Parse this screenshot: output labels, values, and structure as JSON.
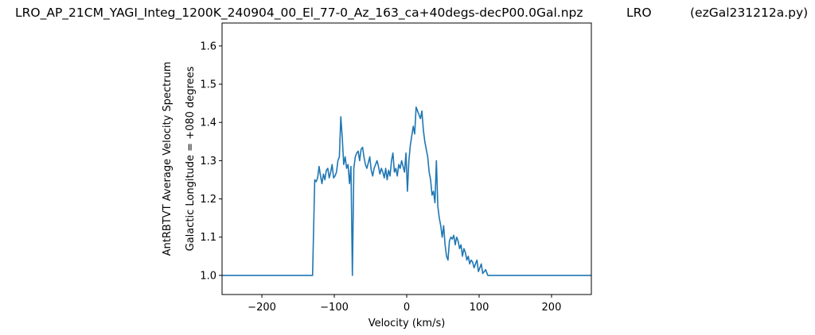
{
  "title_left": "LRO_AP_21CM_YAGI_Integ_1200K_240904_00_El_77-0_Az_163_ca+40degs-decP00.0Gal.npz",
  "title_mid": "LRO",
  "title_right": "(ezGal231212a.py)",
  "chart_data": {
    "type": "line",
    "title": "LRO_AP_21CM_YAGI_Integ_1200K_240904_00_El_77-0_Az_163_ca+40degs-decP00.0Gal.npz",
    "xlabel": "Velocity (km/s)",
    "ylabel": "AntRBTVT Average Velocity Spectrum",
    "ylabel2": "Galactic Longitude = +080 degrees",
    "xlim": [
      -255,
      255
    ],
    "ylim": [
      0.95,
      1.66
    ],
    "xticks": [
      -200,
      -100,
      0,
      100,
      200
    ],
    "xtick_labels": [
      "−200",
      "−100",
      "0",
      "100",
      "200"
    ],
    "yticks": [
      1.0,
      1.1,
      1.2,
      1.3,
      1.4,
      1.5,
      1.6
    ],
    "ytick_labels": [
      "1.0",
      "1.1",
      "1.2",
      "1.3",
      "1.4",
      "1.5",
      "1.6"
    ],
    "line_color": "#1f77b4",
    "grid": false,
    "series": [
      {
        "x": [
          -255,
          -130,
          -127,
          -125,
          -123,
          -121,
          -119,
          -117,
          -115,
          -113,
          -111,
          -109,
          -107,
          -105,
          -103,
          -101,
          -99,
          -97,
          -95,
          -93,
          -91,
          -89,
          -87,
          -85,
          -83,
          -81,
          -79,
          -77,
          -75,
          -73,
          -71,
          -69,
          -67,
          -65,
          -63,
          -61,
          -59,
          -57,
          -55,
          -53,
          -51,
          -49,
          -47,
          -45,
          -43,
          -41,
          -39,
          -37,
          -35,
          -33,
          -31,
          -29,
          -27,
          -25,
          -23,
          -21,
          -19,
          -17,
          -15,
          -13,
          -11,
          -9,
          -7,
          -5,
          -3,
          -1,
          1,
          3,
          5,
          7,
          9,
          11,
          13,
          15,
          17,
          19,
          21,
          23,
          25,
          27,
          29,
          31,
          33,
          35,
          37,
          39,
          41,
          43,
          45,
          47,
          49,
          51,
          53,
          55,
          57,
          59,
          61,
          63,
          65,
          67,
          69,
          71,
          73,
          75,
          77,
          79,
          81,
          83,
          85,
          87,
          89,
          91,
          93,
          95,
          97,
          99,
          101,
          103,
          105,
          107,
          109,
          112,
          255
        ],
        "values": [
          1.0,
          1.0,
          1.25,
          1.245,
          1.255,
          1.285,
          1.26,
          1.24,
          1.265,
          1.25,
          1.275,
          1.28,
          1.255,
          1.27,
          1.29,
          1.255,
          1.26,
          1.27,
          1.3,
          1.31,
          1.415,
          1.36,
          1.29,
          1.31,
          1.28,
          1.29,
          1.24,
          1.285,
          1.0,
          1.28,
          1.31,
          1.32,
          1.325,
          1.3,
          1.33,
          1.335,
          1.31,
          1.29,
          1.28,
          1.295,
          1.31,
          1.275,
          1.26,
          1.28,
          1.29,
          1.3,
          1.285,
          1.265,
          1.28,
          1.27,
          1.255,
          1.28,
          1.25,
          1.275,
          1.26,
          1.3,
          1.32,
          1.27,
          1.28,
          1.26,
          1.29,
          1.28,
          1.3,
          1.285,
          1.27,
          1.32,
          1.22,
          1.3,
          1.34,
          1.365,
          1.39,
          1.37,
          1.44,
          1.43,
          1.42,
          1.41,
          1.43,
          1.38,
          1.35,
          1.33,
          1.31,
          1.27,
          1.25,
          1.21,
          1.22,
          1.19,
          1.3,
          1.18,
          1.15,
          1.13,
          1.1,
          1.13,
          1.08,
          1.05,
          1.04,
          1.09,
          1.1,
          1.095,
          1.105,
          1.08,
          1.1,
          1.09,
          1.07,
          1.08,
          1.05,
          1.07,
          1.06,
          1.04,
          1.05,
          1.03,
          1.04,
          1.035,
          1.02,
          1.03,
          1.04,
          1.01,
          1.02,
          1.03,
          1.005,
          1.01,
          1.015,
          1.0,
          1.0
        ]
      }
    ]
  }
}
